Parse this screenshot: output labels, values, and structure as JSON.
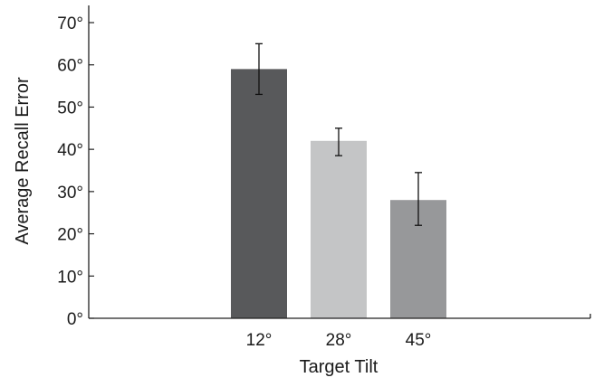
{
  "chart_data": {
    "type": "bar",
    "title": "",
    "xlabel": "Target Tilt",
    "ylabel": "Average Recall Error",
    "categories": [
      "12°",
      "28°",
      "45°"
    ],
    "values": [
      59,
      42,
      28
    ],
    "error_bars": [
      {
        "low": 53,
        "high": 65
      },
      {
        "low": 38.5,
        "high": 45
      },
      {
        "low": 22,
        "high": 34.5
      }
    ],
    "bar_colors": [
      "#58595b",
      "#c4c5c6",
      "#97989a"
    ],
    "ylim": [
      0,
      70
    ],
    "yticks": [
      0,
      10,
      20,
      30,
      40,
      50,
      60,
      70
    ],
    "ytick_labels": [
      "0°",
      "10°",
      "20°",
      "30°",
      "40°",
      "50°",
      "60°",
      "70°"
    ],
    "grid": false,
    "legend": "none"
  }
}
